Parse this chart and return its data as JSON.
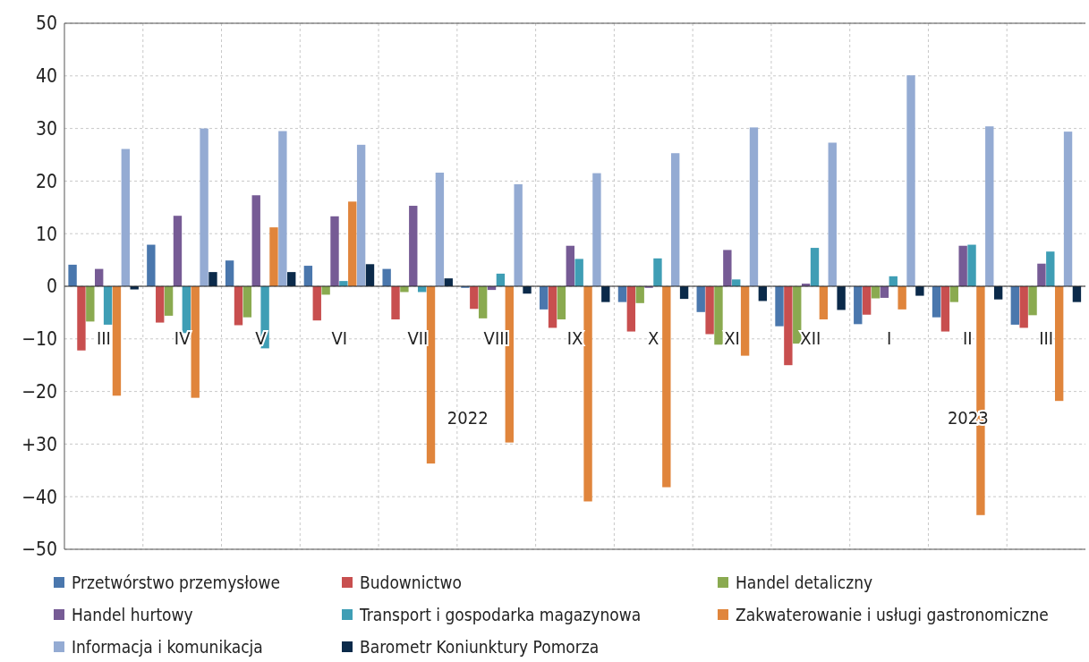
{
  "chart_data": {
    "type": "bar",
    "categories": [
      "III",
      "IV",
      "V",
      "VI",
      "VII",
      "VIII",
      "IX",
      "X",
      "XI",
      "XII",
      "I",
      "II",
      "III"
    ],
    "series": [
      {
        "name": "Przetwórstwo przemysłowe",
        "color": "#4a77ad",
        "values": [
          4.1,
          7.9,
          4.9,
          3.9,
          3.3,
          -0.3,
          -4.4,
          -3.0,
          -4.9,
          -7.6,
          -7.2,
          -5.9,
          -7.3
        ]
      },
      {
        "name": "Budownictwo",
        "color": "#c84f4f",
        "values": [
          -12.2,
          -6.9,
          -7.4,
          -6.5,
          -6.3,
          -4.3,
          -7.9,
          -8.6,
          -9.1,
          -15.0,
          -5.4,
          -8.6,
          -7.9
        ]
      },
      {
        "name": "Handel detaliczny",
        "color": "#8aaa50",
        "values": [
          -6.7,
          -5.6,
          -5.9,
          -1.6,
          -1.1,
          -6.1,
          -6.3,
          -3.2,
          -11.1,
          -10.9,
          -2.3,
          -3.0,
          -5.5
        ]
      },
      {
        "name": "Handel hurtowy",
        "color": "#765b95",
        "values": [
          3.3,
          13.4,
          17.3,
          13.3,
          15.3,
          -0.7,
          7.7,
          -0.3,
          6.9,
          0.5,
          -2.2,
          7.7,
          4.3
        ]
      },
      {
        "name": "Transport i gospodarka magazynowa",
        "color": "#3f9eb5",
        "values": [
          -7.3,
          -8.9,
          -11.8,
          1.0,
          -1.1,
          2.4,
          5.2,
          5.3,
          1.3,
          7.3,
          1.9,
          7.9,
          6.6
        ]
      },
      {
        "name": "Zakwaterowanie i usługi gastronomiczne",
        "color": "#e0853c",
        "values": [
          -20.8,
          -21.2,
          11.2,
          16.1,
          -33.7,
          -29.7,
          -40.9,
          -38.2,
          -13.2,
          -6.3,
          -4.4,
          -43.5,
          -21.8
        ]
      },
      {
        "name": "Informacja i komunikacja",
        "color": "#94abd3",
        "values": [
          26.1,
          30.0,
          29.5,
          26.9,
          21.6,
          19.4,
          21.5,
          25.3,
          30.2,
          27.3,
          40.1,
          30.4,
          29.4
        ]
      },
      {
        "name": "Barometr Koniunktury Pomorza",
        "color": "#0b2a4a",
        "values": [
          -0.6,
          2.7,
          2.7,
          4.2,
          1.5,
          -1.4,
          -3.0,
          -2.4,
          -2.8,
          -4.5,
          -1.8,
          -2.5,
          -3.0
        ]
      }
    ],
    "ylim": [
      -50,
      50
    ],
    "yticks": [
      {
        "value": -50,
        "label": "−50"
      },
      {
        "value": -40,
        "label": "−40"
      },
      {
        "value": -30,
        "label": "+30"
      },
      {
        "value": -20,
        "label": "−20"
      },
      {
        "value": -10,
        "label": "−10"
      },
      0,
      10,
      20,
      30,
      40,
      50
    ],
    "annotations": [
      "2022",
      "2023"
    ],
    "grid": true,
    "legend": "bottom"
  }
}
